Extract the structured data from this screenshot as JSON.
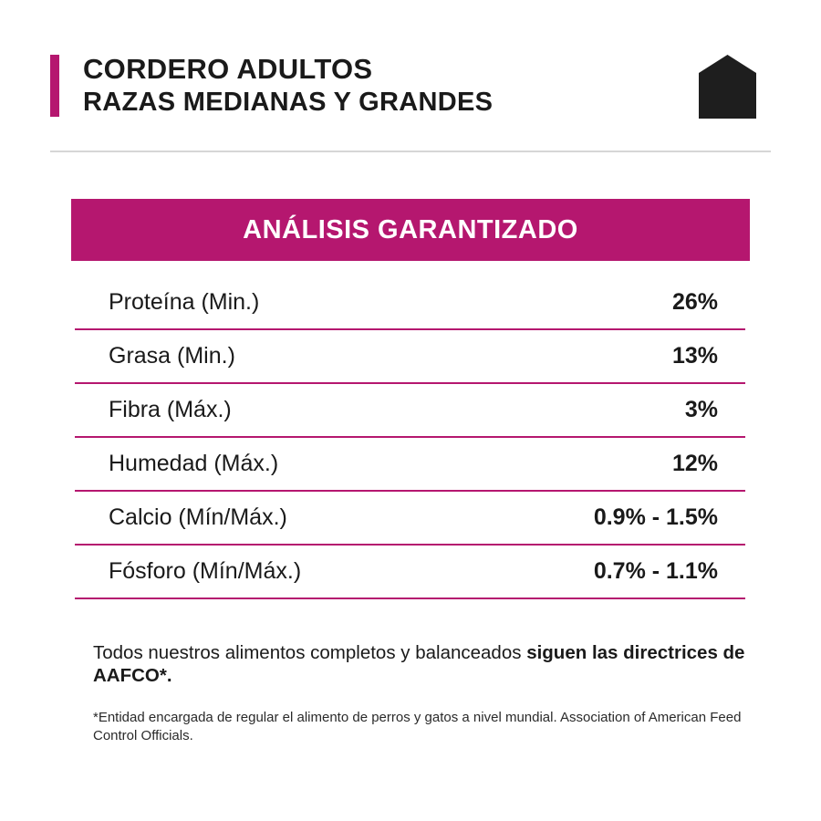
{
  "header": {
    "title_bold": "CORDERO",
    "title_rest": " ADULTOS",
    "subtitle": "RAZAS MEDIANAS Y GRANDES",
    "icon": "house-icon",
    "accent_color": "#b5176f"
  },
  "analysis": {
    "heading": "ANÁLISIS GARANTIZADO",
    "rows": [
      {
        "label": "Proteína (Min.)",
        "value": "26%"
      },
      {
        "label": "Grasa (Min.)",
        "value": "13%"
      },
      {
        "label": "Fibra (Máx.)",
        "value": "3%"
      },
      {
        "label": "Humedad (Máx.)",
        "value": "12%"
      },
      {
        "label": "Calcio (Mín/Máx.)",
        "value": "0.9% - 1.5%"
      },
      {
        "label": "Fósforo (Mín/Máx.)",
        "value": "0.7% - 1.1%"
      }
    ]
  },
  "footnote": {
    "main_text": "Todos nuestros alimentos completos y balanceados ",
    "main_bold": "siguen las directrices de AAFCO*.",
    "small_text": "*Entidad encargada de regular el alimento de perros y gatos a nivel mundial. Association of American Feed Control Officials."
  }
}
